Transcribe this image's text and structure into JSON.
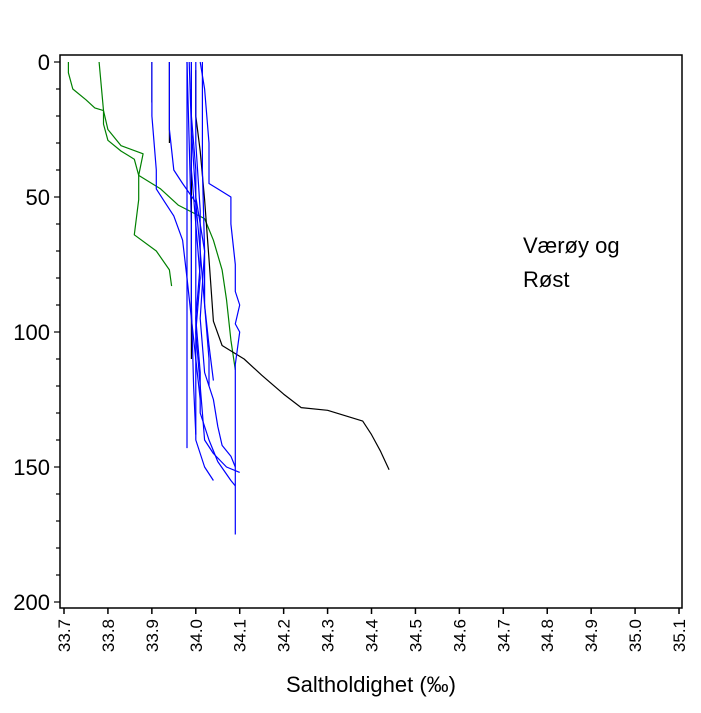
{
  "chart_data": {
    "type": "line",
    "title": "",
    "xlabel": "Saltholdighet (‰)",
    "ylabel": "",
    "xlim": [
      33.7,
      35.1
    ],
    "ylim": [
      200,
      0
    ],
    "y_inverted": true,
    "grid": false,
    "xticks": [
      "33.7",
      "33.8",
      "33.9",
      "34.0",
      "34.1",
      "34.2",
      "34.3",
      "34.4",
      "34.5",
      "34.6",
      "34.7",
      "34.8",
      "34.9",
      "35.0",
      "35.1"
    ],
    "yticks": [
      "0",
      "50",
      "100",
      "150",
      "200"
    ],
    "annotation": [
      "Værøy og",
      "Røst"
    ],
    "colors": {
      "green": "#008000",
      "blue": "#0000ff",
      "black": "#000000"
    },
    "series": [
      {
        "name": "green-1",
        "color": "green",
        "points": [
          [
            33.71,
            0
          ],
          [
            33.71,
            4
          ],
          [
            33.72,
            10
          ],
          [
            33.75,
            14
          ],
          [
            33.77,
            17
          ],
          [
            33.79,
            18
          ],
          [
            33.79,
            23
          ],
          [
            33.8,
            29
          ],
          [
            33.83,
            33
          ],
          [
            33.86,
            36
          ],
          [
            33.87,
            42
          ],
          [
            33.92,
            47
          ],
          [
            33.96,
            53
          ],
          [
            34.02,
            58
          ],
          [
            34.04,
            66
          ],
          [
            34.06,
            77
          ],
          [
            34.07,
            88
          ],
          [
            34.08,
            103
          ],
          [
            34.09,
            114
          ]
        ]
      },
      {
        "name": "green-2",
        "color": "green",
        "points": [
          [
            33.78,
            0
          ],
          [
            33.79,
            18
          ],
          [
            33.8,
            25
          ],
          [
            33.83,
            31
          ],
          [
            33.88,
            34
          ],
          [
            33.87,
            42
          ],
          [
            33.87,
            51
          ],
          [
            33.86,
            64
          ],
          [
            33.91,
            70
          ],
          [
            33.94,
            77
          ],
          [
            33.945,
            83
          ]
        ]
      },
      {
        "name": "black-1",
        "color": "black",
        "points": [
          [
            34.0,
            3
          ],
          [
            34.0,
            20
          ],
          [
            34.01,
            33
          ],
          [
            34.02,
            51
          ],
          [
            34.03,
            73
          ],
          [
            34.04,
            96
          ],
          [
            34.06,
            105
          ],
          [
            34.11,
            110
          ],
          [
            34.15,
            116
          ],
          [
            34.2,
            123
          ],
          [
            34.24,
            128
          ],
          [
            34.3,
            129
          ],
          [
            34.38,
            133
          ],
          [
            34.4,
            138
          ],
          [
            34.42,
            144
          ],
          [
            34.44,
            151
          ]
        ]
      },
      {
        "name": "black-2",
        "color": "black",
        "points": [
          [
            33.9,
            0
          ],
          [
            33.9,
            15
          ]
        ]
      },
      {
        "name": "black-3",
        "color": "black",
        "points": [
          [
            33.94,
            0
          ],
          [
            33.94,
            30
          ]
        ]
      },
      {
        "name": "black-4",
        "color": "black",
        "points": [
          [
            33.99,
            10
          ],
          [
            33.99,
            110
          ]
        ]
      },
      {
        "name": "blue-1",
        "color": "blue",
        "points": [
          [
            33.9,
            0
          ],
          [
            33.9,
            20
          ],
          [
            33.91,
            40
          ],
          [
            33.91,
            47
          ],
          [
            33.93,
            52
          ],
          [
            33.95,
            57
          ],
          [
            33.97,
            66
          ],
          [
            33.98,
            80
          ],
          [
            33.99,
            95
          ],
          [
            34.0,
            110
          ],
          [
            34.01,
            125
          ]
        ]
      },
      {
        "name": "blue-2",
        "color": "blue",
        "points": [
          [
            33.94,
            0
          ],
          [
            33.94,
            25
          ],
          [
            33.95,
            40
          ],
          [
            33.97,
            45
          ],
          [
            34.0,
            52
          ],
          [
            34.01,
            70
          ],
          [
            34.02,
            90
          ],
          [
            34.03,
            105
          ],
          [
            34.04,
            118
          ]
        ]
      },
      {
        "name": "blue-3",
        "color": "blue",
        "points": [
          [
            33.98,
            0
          ],
          [
            33.98,
            30
          ],
          [
            33.98,
            60
          ],
          [
            33.98,
            100
          ],
          [
            33.98,
            143
          ]
        ]
      },
      {
        "name": "blue-4",
        "color": "blue",
        "points": [
          [
            34.01,
            0
          ],
          [
            34.02,
            10
          ],
          [
            34.03,
            30
          ],
          [
            34.03,
            45
          ],
          [
            34.05,
            47
          ],
          [
            34.08,
            50
          ],
          [
            34.08,
            60
          ],
          [
            34.09,
            75
          ],
          [
            34.09,
            85
          ],
          [
            34.1,
            90
          ],
          [
            34.09,
            97
          ],
          [
            34.1,
            100
          ],
          [
            34.09,
            112
          ],
          [
            34.09,
            140
          ],
          [
            34.09,
            175
          ]
        ]
      },
      {
        "name": "blue-5",
        "color": "blue",
        "points": [
          [
            33.99,
            0
          ],
          [
            33.99,
            20
          ],
          [
            34.0,
            40
          ],
          [
            34.0,
            60
          ],
          [
            34.01,
            80
          ],
          [
            34.0,
            100
          ],
          [
            34.01,
            120
          ],
          [
            34.02,
            140
          ],
          [
            34.04,
            145
          ],
          [
            34.07,
            150
          ],
          [
            34.1,
            152
          ]
        ]
      },
      {
        "name": "blue-6",
        "color": "blue",
        "points": [
          [
            33.985,
            0
          ],
          [
            33.99,
            25
          ],
          [
            34.0,
            50
          ],
          [
            34.02,
            70
          ],
          [
            34.02,
            90
          ],
          [
            34.03,
            110
          ],
          [
            34.03,
            120
          ]
        ]
      },
      {
        "name": "blue-7",
        "color": "blue",
        "points": [
          [
            34.0,
            0
          ],
          [
            34.0,
            30
          ],
          [
            34.01,
            55
          ],
          [
            34.01,
            75
          ],
          [
            34.0,
            95
          ],
          [
            34.01,
            115
          ],
          [
            34.01,
            130
          ],
          [
            34.03,
            140
          ],
          [
            34.05,
            148
          ],
          [
            34.08,
            155
          ],
          [
            34.09,
            157
          ]
        ]
      },
      {
        "name": "blue-8",
        "color": "blue",
        "points": [
          [
            33.99,
            0
          ],
          [
            33.99,
            40
          ],
          [
            34.0,
            60
          ],
          [
            34.0,
            85
          ],
          [
            34.0,
            105
          ],
          [
            34.0,
            125
          ],
          [
            34.0,
            140
          ],
          [
            34.02,
            150
          ],
          [
            34.04,
            155
          ]
        ]
      },
      {
        "name": "blue-9",
        "color": "blue",
        "points": [
          [
            33.98,
            0
          ],
          [
            33.985,
            30
          ],
          [
            33.99,
            60
          ],
          [
            33.99,
            90
          ],
          [
            33.995,
            120
          ],
          [
            34.0,
            138
          ]
        ]
      },
      {
        "name": "blue-10",
        "color": "blue",
        "points": [
          [
            34.015,
            0
          ],
          [
            34.015,
            40
          ],
          [
            34.02,
            70
          ],
          [
            34.01,
            95
          ],
          [
            34.02,
            115
          ],
          [
            34.04,
            125
          ],
          [
            34.05,
            135
          ],
          [
            34.06,
            142
          ],
          [
            34.08,
            146
          ],
          [
            34.09,
            150
          ]
        ]
      }
    ]
  }
}
